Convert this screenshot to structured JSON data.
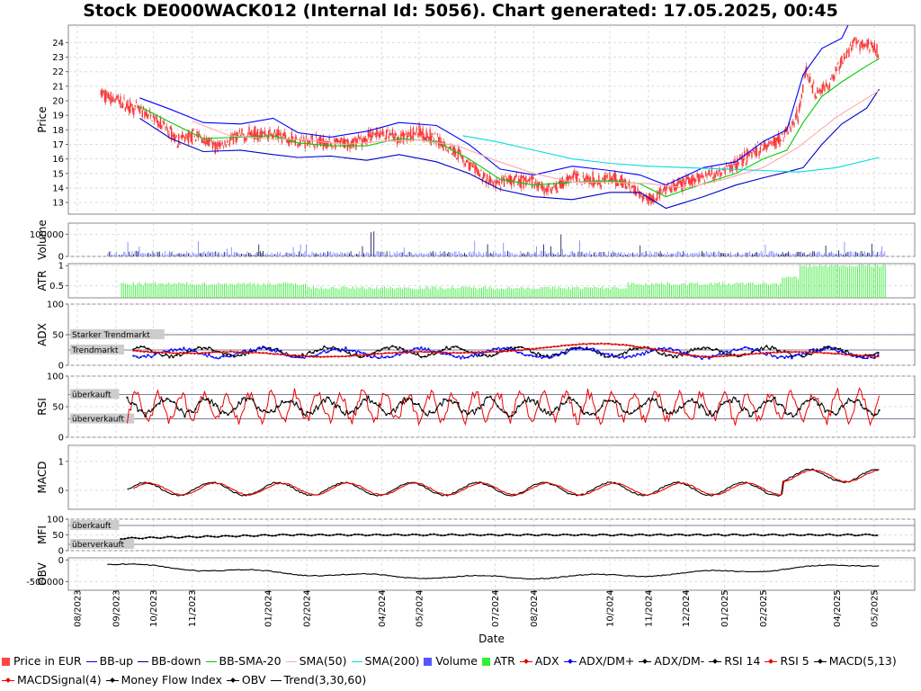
{
  "chart": {
    "title": "Stock DE000WACK012 (Internal Id: 5056). Chart generated: 17.05.2025, 00:45",
    "xlabel": "Date"
  },
  "chart_data": [
    {
      "panel": "price",
      "type": "line",
      "ylabel": "Price",
      "ylim": [
        12.2,
        25.2
      ],
      "yticks": [
        13,
        14,
        15,
        16,
        17,
        18,
        19,
        20,
        21,
        22,
        23,
        24
      ],
      "grid": true,
      "series": [
        {
          "name": "Price in EUR",
          "kind": "candles",
          "color": "#ff3333",
          "points": [
            [
              "2023-08-20",
              20.5
            ],
            [
              "2023-09-05",
              19.9
            ],
            [
              "2023-09-20",
              19.3
            ],
            [
              "2023-10-05",
              18.6
            ],
            [
              "2023-10-20",
              17.3
            ],
            [
              "2023-11-05",
              17.6
            ],
            [
              "2023-11-20",
              16.8
            ],
            [
              "2023-12-05",
              17.4
            ],
            [
              "2023-12-20",
              17.8
            ],
            [
              "2024-01-10",
              17.6
            ],
            [
              "2024-01-25",
              17.3
            ],
            [
              "2024-02-10",
              17.2
            ],
            [
              "2024-02-25",
              17.0
            ],
            [
              "2024-03-15",
              17.2
            ],
            [
              "2024-03-28",
              17.8
            ],
            [
              "2024-04-15",
              17.4
            ],
            [
              "2024-05-01",
              17.9
            ],
            [
              "2024-05-15",
              17.3
            ],
            [
              "2024-06-01",
              16.4
            ],
            [
              "2024-06-15",
              15.2
            ],
            [
              "2024-07-01",
              14.2
            ],
            [
              "2024-07-15",
              14.5
            ],
            [
              "2024-08-01",
              14.4
            ],
            [
              "2024-08-15",
              13.8
            ],
            [
              "2024-09-01",
              14.8
            ],
            [
              "2024-09-15",
              14.6
            ],
            [
              "2024-10-01",
              14.6
            ],
            [
              "2024-10-15",
              14.3
            ],
            [
              "2024-11-01",
              13.2
            ],
            [
              "2024-11-15",
              13.8
            ],
            [
              "2024-12-01",
              14.4
            ],
            [
              "2024-12-15",
              14.8
            ],
            [
              "2025-01-01",
              15.2
            ],
            [
              "2025-01-15",
              16.0
            ],
            [
              "2025-02-01",
              16.8
            ],
            [
              "2025-02-15",
              17.4
            ],
            [
              "2025-03-01",
              19.0
            ],
            [
              "2025-03-07",
              22.0
            ],
            [
              "2025-03-15",
              20.5
            ],
            [
              "2025-03-25",
              21.0
            ],
            [
              "2025-04-05",
              22.8
            ],
            [
              "2025-04-15",
              24.0
            ],
            [
              "2025-05-01",
              23.7
            ],
            [
              "2025-05-05",
              23.2
            ]
          ]
        },
        {
          "name": "BB-up",
          "color": "#0000ff",
          "points": [
            [
              "2023-09-20",
              20.2
            ],
            [
              "2023-10-15",
              19.4
            ],
            [
              "2023-11-10",
              18.5
            ],
            [
              "2023-12-10",
              18.4
            ],
            [
              "2024-01-05",
              18.8
            ],
            [
              "2024-01-25",
              17.8
            ],
            [
              "2024-02-20",
              17.5
            ],
            [
              "2024-03-20",
              17.9
            ],
            [
              "2024-04-15",
              18.5
            ],
            [
              "2024-05-15",
              18.3
            ],
            [
              "2024-06-10",
              17.0
            ],
            [
              "2024-07-05",
              15.3
            ],
            [
              "2024-08-01",
              14.9
            ],
            [
              "2024-09-01",
              15.5
            ],
            [
              "2024-10-01",
              15.2
            ],
            [
              "2024-10-25",
              14.9
            ],
            [
              "2024-11-15",
              14.2
            ],
            [
              "2024-12-15",
              15.4
            ],
            [
              "2025-01-10",
              15.8
            ],
            [
              "2025-02-01",
              17.2
            ],
            [
              "2025-02-20",
              18.0
            ],
            [
              "2025-03-05",
              21.8
            ],
            [
              "2025-03-20",
              23.6
            ],
            [
              "2025-04-05",
              24.3
            ],
            [
              "2025-04-10",
              25.2
            ]
          ]
        },
        {
          "name": "BB-down",
          "color": "#0000cc",
          "points": [
            [
              "2023-09-20",
              18.8
            ],
            [
              "2023-10-15",
              17.4
            ],
            [
              "2023-11-10",
              16.5
            ],
            [
              "2023-12-10",
              16.6
            ],
            [
              "2024-01-05",
              16.3
            ],
            [
              "2024-01-25",
              16.1
            ],
            [
              "2024-02-20",
              16.2
            ],
            [
              "2024-03-20",
              15.9
            ],
            [
              "2024-04-15",
              16.3
            ],
            [
              "2024-05-15",
              15.8
            ],
            [
              "2024-06-10",
              15.0
            ],
            [
              "2024-07-05",
              13.9
            ],
            [
              "2024-08-01",
              13.4
            ],
            [
              "2024-09-01",
              13.2
            ],
            [
              "2024-10-01",
              13.7
            ],
            [
              "2024-10-25",
              13.7
            ],
            [
              "2024-11-15",
              12.6
            ],
            [
              "2024-12-15",
              13.4
            ],
            [
              "2025-01-10",
              14.2
            ],
            [
              "2025-02-01",
              14.7
            ],
            [
              "2025-02-20",
              15.1
            ],
            [
              "2025-03-05",
              15.4
            ],
            [
              "2025-03-20",
              17.0
            ],
            [
              "2025-04-05",
              18.4
            ],
            [
              "2025-04-25",
              19.5
            ],
            [
              "2025-05-05",
              20.8
            ]
          ]
        },
        {
          "name": "BB-SMA-20",
          "color": "#00cc00",
          "points": [
            [
              "2023-09-20",
              19.6
            ],
            [
              "2023-10-15",
              18.5
            ],
            [
              "2023-11-10",
              17.4
            ],
            [
              "2023-12-10",
              17.5
            ],
            [
              "2024-01-05",
              17.6
            ],
            [
              "2024-01-25",
              17.1
            ],
            [
              "2024-02-20",
              16.9
            ],
            [
              "2024-03-20",
              16.9
            ],
            [
              "2024-04-15",
              17.4
            ],
            [
              "2024-05-15",
              17.2
            ],
            [
              "2024-06-10",
              16.0
            ],
            [
              "2024-07-05",
              14.6
            ],
            [
              "2024-08-01",
              14.2
            ],
            [
              "2024-09-01",
              14.4
            ],
            [
              "2024-10-01",
              14.5
            ],
            [
              "2024-10-25",
              14.3
            ],
            [
              "2024-11-15",
              13.4
            ],
            [
              "2024-12-15",
              14.3
            ],
            [
              "2025-01-10",
              15.0
            ],
            [
              "2025-02-01",
              16.0
            ],
            [
              "2025-02-20",
              16.6
            ],
            [
              "2025-03-05",
              18.5
            ],
            [
              "2025-03-20",
              20.3
            ],
            [
              "2025-04-05",
              21.3
            ],
            [
              "2025-04-25",
              22.4
            ],
            [
              "2025-05-05",
              22.9
            ]
          ]
        },
        {
          "name": "SMA(50)",
          "color": "#ffaaaa",
          "points": [
            [
              "2023-11-01",
              18.6
            ],
            [
              "2023-12-01",
              17.6
            ],
            [
              "2024-01-01",
              17.4
            ],
            [
              "2024-02-01",
              17.3
            ],
            [
              "2024-03-01",
              17.0
            ],
            [
              "2024-04-01",
              17.2
            ],
            [
              "2024-05-01",
              17.3
            ],
            [
              "2024-06-01",
              16.9
            ],
            [
              "2024-07-01",
              15.9
            ],
            [
              "2024-08-01",
              15.0
            ],
            [
              "2024-09-01",
              14.4
            ],
            [
              "2024-10-01",
              14.4
            ],
            [
              "2024-11-01",
              14.3
            ],
            [
              "2024-12-01",
              14.0
            ],
            [
              "2025-01-01",
              14.6
            ],
            [
              "2025-02-01",
              15.4
            ],
            [
              "2025-03-01",
              16.8
            ],
            [
              "2025-04-01",
              18.9
            ],
            [
              "2025-05-05",
              20.7
            ]
          ]
        },
        {
          "name": "SMA(200)",
          "color": "#00dddd",
          "points": [
            [
              "2024-06-05",
              17.6
            ],
            [
              "2024-07-01",
              17.2
            ],
            [
              "2024-08-01",
              16.6
            ],
            [
              "2024-09-01",
              16.0
            ],
            [
              "2024-10-01",
              15.7
            ],
            [
              "2024-11-01",
              15.5
            ],
            [
              "2024-12-01",
              15.4
            ],
            [
              "2025-01-01",
              15.3
            ],
            [
              "2025-02-01",
              15.2
            ],
            [
              "2025-03-01",
              15.1
            ],
            [
              "2025-04-01",
              15.4
            ],
            [
              "2025-05-05",
              16.1
            ]
          ]
        }
      ]
    },
    {
      "panel": "volume",
      "type": "bar",
      "ylabel": "Volume",
      "ylim": [
        0,
        150000
      ],
      "yticks": [
        0,
        100000
      ],
      "series": [
        {
          "name": "Volume",
          "color": "#5555ff"
        }
      ]
    },
    {
      "panel": "atr",
      "type": "bar",
      "ylabel": "ATR",
      "ylim": [
        0.2,
        1.05
      ],
      "yticks": [
        0.5,
        1
      ],
      "series": [
        {
          "name": "ATR",
          "color": "#33ee33"
        }
      ]
    },
    {
      "panel": "adx",
      "type": "line",
      "ylabel": "ADX",
      "ylim": [
        0,
        100
      ],
      "yticks": [
        0,
        50,
        100
      ],
      "levels": [
        {
          "value": 50,
          "label": "Starker Trendmarkt"
        },
        {
          "value": 25,
          "label": "Trendmarkt"
        }
      ],
      "series": [
        {
          "name": "ADX",
          "color": "#dd0000"
        },
        {
          "name": "ADX/DM+",
          "color": "#0000ff"
        },
        {
          "name": "ADX/DM-",
          "color": "#000000"
        }
      ]
    },
    {
      "panel": "rsi",
      "type": "line",
      "ylabel": "RSI",
      "ylim": [
        0,
        100
      ],
      "yticks": [
        0,
        50,
        100
      ],
      "levels": [
        {
          "value": 70,
          "label": "überkauft"
        },
        {
          "value": 30,
          "label": "überverkauft"
        }
      ],
      "series": [
        {
          "name": "RSI 14",
          "color": "#000000"
        },
        {
          "name": "RSI 5",
          "color": "#ee0000"
        }
      ]
    },
    {
      "panel": "macd",
      "type": "line",
      "ylabel": "MACD",
      "ylim": [
        -0.65,
        1.55
      ],
      "yticks": [
        0,
        1
      ],
      "series": [
        {
          "name": "MACD(5,13)",
          "color": "#000000"
        },
        {
          "name": "MACDSignal(4)",
          "color": "#ee0000"
        }
      ]
    },
    {
      "panel": "mfi",
      "type": "line",
      "ylabel": "MFI",
      "ylim": [
        0,
        100
      ],
      "yticks": [
        0,
        50,
        100
      ],
      "levels": [
        {
          "value": 80,
          "label": "überkauft"
        },
        {
          "value": 20,
          "label": "überverkauft"
        }
      ],
      "series": [
        {
          "name": "Money Flow Index",
          "color": "#000000"
        }
      ]
    },
    {
      "panel": "obv",
      "type": "line",
      "ylabel": "OBV",
      "ylim": [
        -700000,
        50000
      ],
      "yticks": [
        0,
        -500000
      ],
      "series": [
        {
          "name": "OBV",
          "color": "#000000"
        }
      ]
    }
  ],
  "xaxis": {
    "ticks": [
      {
        "date": "2023-08-01",
        "label": "08/2023"
      },
      {
        "date": "2023-09-01",
        "label": "09/2023"
      },
      {
        "date": "2023-10-01",
        "label": "10/2023"
      },
      {
        "date": "2023-11-01",
        "label": "11/2023"
      },
      {
        "date": "2024-01-01",
        "label": "01/2024"
      },
      {
        "date": "2024-02-01",
        "label": "02/2024"
      },
      {
        "date": "2024-04-01",
        "label": "04/2024"
      },
      {
        "date": "2024-05-01",
        "label": "05/2024"
      },
      {
        "date": "2024-07-01",
        "label": "07/2024"
      },
      {
        "date": "2024-08-01",
        "label": "08/2024"
      },
      {
        "date": "2024-10-01",
        "label": "10/2024"
      },
      {
        "date": "2024-11-01",
        "label": "11/2024"
      },
      {
        "date": "2024-12-01",
        "label": "12/2024"
      },
      {
        "date": "2025-01-01",
        "label": "01/2025"
      },
      {
        "date": "2025-02-01",
        "label": "02/2025"
      },
      {
        "date": "2025-04-01",
        "label": "04/2025"
      },
      {
        "date": "2025-05-01",
        "label": "05/2025"
      }
    ]
  },
  "legend": {
    "items": [
      {
        "label": "Price in EUR",
        "symbol": "square",
        "color": "#ff4444"
      },
      {
        "label": "BB-up",
        "symbol": "line",
        "color": "#0000ff"
      },
      {
        "label": "BB-down",
        "symbol": "line",
        "color": "#000088"
      },
      {
        "label": "BB-SMA-20",
        "symbol": "line",
        "color": "#00cc00"
      },
      {
        "label": "SMA(50)",
        "symbol": "line",
        "color": "#ffaaaa"
      },
      {
        "label": "SMA(200)",
        "symbol": "line",
        "color": "#00dddd"
      },
      {
        "label": "Volume",
        "symbol": "square",
        "color": "#5555ff"
      },
      {
        "label": "ATR",
        "symbol": "square",
        "color": "#33ee33"
      },
      {
        "label": "ADX",
        "symbol": "marker",
        "color": "#dd0000"
      },
      {
        "label": "ADX/DM+",
        "symbol": "marker",
        "color": "#0000ff"
      },
      {
        "label": "ADX/DM-",
        "symbol": "marker",
        "color": "#000000"
      },
      {
        "label": "RSI 14",
        "symbol": "marker",
        "color": "#000000"
      },
      {
        "label": "RSI 5",
        "symbol": "marker",
        "color": "#ee0000"
      },
      {
        "label": "MACD(5,13)",
        "symbol": "marker",
        "color": "#000000"
      },
      {
        "label": "MACDSignal(4)",
        "symbol": "marker",
        "color": "#ee0000"
      },
      {
        "label": "Money Flow Index",
        "symbol": "marker",
        "color": "#000000"
      },
      {
        "label": "OBV",
        "symbol": "marker",
        "color": "#000000"
      },
      {
        "label": "Trend(3,30,60)",
        "symbol": "line",
        "color": "#000000"
      }
    ]
  }
}
